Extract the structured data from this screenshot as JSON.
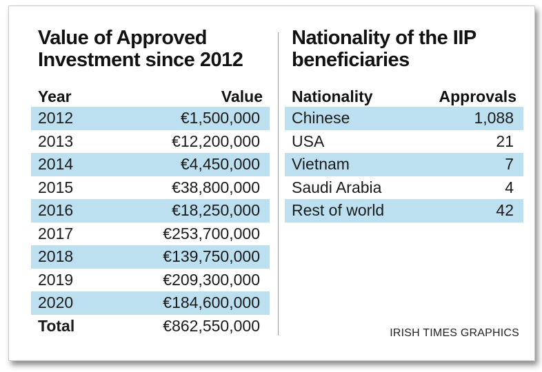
{
  "left": {
    "title_line1": "Value of Approved",
    "title_line2": "Investment since 2012",
    "col_year": "Year",
    "col_value": "Value",
    "rows": [
      {
        "year": "2012",
        "value": "€1,500,000"
      },
      {
        "year": "2013",
        "value": "€12,200,000"
      },
      {
        "year": "2014",
        "value": "€4,450,000"
      },
      {
        "year": "2015",
        "value": "€38,800,000"
      },
      {
        "year": "2016",
        "value": "€18,250,000"
      },
      {
        "year": "2017",
        "value": "€253,700,000"
      },
      {
        "year": "2018",
        "value": "€139,750,000"
      },
      {
        "year": "2019",
        "value": "€209,300,000"
      },
      {
        "year": "2020",
        "value": "€184,600,000"
      }
    ],
    "total_label": "Total",
    "total_value": "€862,550,000"
  },
  "right": {
    "title_line1": "Nationality of the IIP",
    "title_line2": "beneficiaries",
    "col_nationality": "Nationality",
    "col_approvals": "Approvals",
    "rows": [
      {
        "nationality": "Chinese",
        "approvals": "1,088"
      },
      {
        "nationality": "USA",
        "approvals": "21"
      },
      {
        "nationality": "Vietnam",
        "approvals": "7"
      },
      {
        "nationality": "Saudi Arabia",
        "approvals": "4"
      },
      {
        "nationality": "Rest of world",
        "approvals": "42"
      }
    ]
  },
  "credit": "IRISH TIMES GRAPHICS",
  "colors": {
    "row_shade": "#bde0f1",
    "divider": "#9a9a9a"
  }
}
